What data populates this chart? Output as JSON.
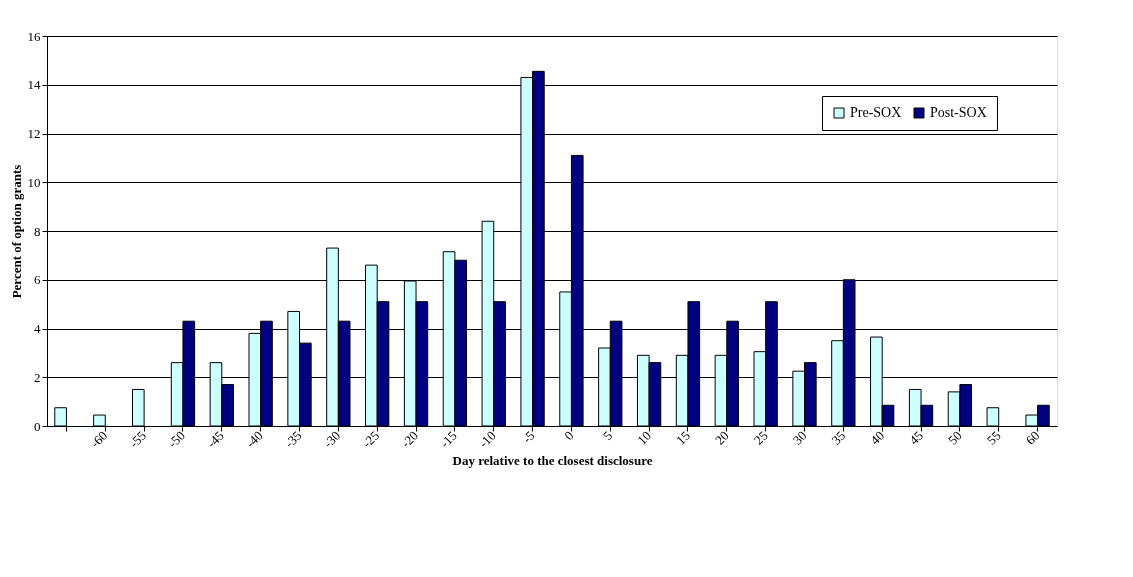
{
  "chart_data": {
    "type": "bar",
    "xlabel": "Day relative to the closest disclosure",
    "ylabel": "Percent of option grants",
    "categories": [
      null,
      "-60",
      "-55",
      "-50",
      "-45",
      "-40",
      "-35",
      "-30",
      "-25",
      "-20",
      "-15",
      "-10",
      "-5",
      "0",
      "5",
      "10",
      "15",
      "20",
      "25",
      "30",
      "35",
      "40",
      "45",
      "50",
      "55",
      "60"
    ],
    "series": [
      {
        "name": "Pre-SOX",
        "color": "#ccffff",
        "values": [
          0.75,
          0.45,
          1.5,
          2.6,
          2.6,
          3.8,
          4.7,
          7.3,
          6.6,
          5.95,
          7.15,
          8.4,
          14.3,
          5.5,
          3.2,
          2.9,
          2.9,
          2.9,
          3.05,
          2.25,
          3.5,
          3.65,
          1.5,
          1.4,
          0.75,
          0.45
        ]
      },
      {
        "name": "Post-SOX",
        "color": "#000080",
        "values": [
          null,
          null,
          null,
          4.3,
          1.7,
          4.3,
          3.4,
          4.3,
          5.1,
          5.1,
          6.8,
          5.1,
          14.55,
          11.1,
          4.3,
          2.6,
          5.1,
          4.3,
          5.1,
          2.6,
          6.0,
          0.85,
          0.85,
          1.7,
          null,
          0.85
        ]
      }
    ],
    "ylim": [
      0,
      16
    ],
    "yticks": [
      0,
      2,
      4,
      6,
      8,
      10,
      12,
      14,
      16
    ],
    "grid": "y",
    "legend": "top right"
  }
}
